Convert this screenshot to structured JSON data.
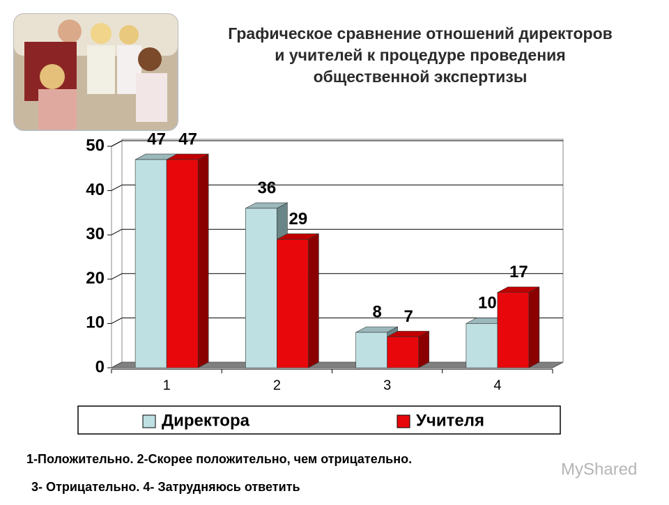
{
  "chart_data": {
    "type": "bar3d",
    "title": [
      "Графическое сравнение отношений директоров",
      "и учителей к процедуре проведения",
      "общественной экспертизы"
    ],
    "categories": [
      "1",
      "2",
      "3",
      "4"
    ],
    "series": [
      {
        "name": "Директора",
        "color": "#bfe0e3",
        "values": [
          47,
          36,
          8,
          10
        ]
      },
      {
        "name": "Учителя",
        "color": "#e8080c",
        "values": [
          47,
          29,
          7,
          17
        ]
      }
    ],
    "ylim": [
      0,
      50
    ],
    "yticks": [
      0,
      10,
      20,
      30,
      40,
      50
    ],
    "grid": true
  },
  "notes": [
    "1-Положительно. 2-Скорее положительно, чем отрицательно.",
    "3- Отрицательно. 4- Затрудняюсь ответить"
  ],
  "watermark": "MyShared"
}
